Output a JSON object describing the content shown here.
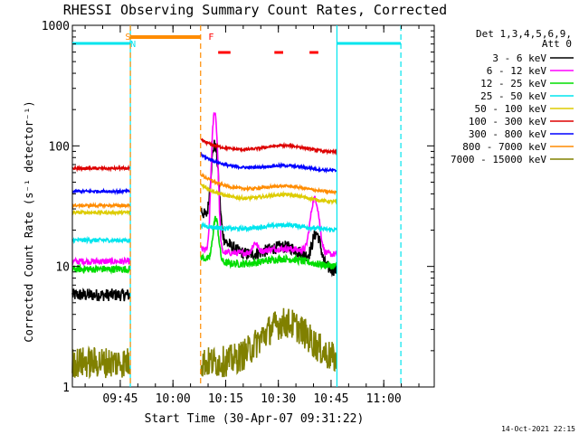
{
  "chart_data": {
    "type": "line",
    "title": "RHESSI Observing Summary Count Rates, Corrected",
    "xlabel": "Start Time (30-Apr-07 09:31:22)",
    "ylabel": "Corrected Count Rate (s⁻¹ detector⁻¹)",
    "y_scale": "log",
    "ylim": [
      1,
      1000
    ],
    "xlim_minutes": [
      0,
      103
    ],
    "y_ticks": [
      {
        "value": 1,
        "label": "1"
      },
      {
        "value": 10,
        "label": "10"
      },
      {
        "value": 100,
        "label": "100"
      },
      {
        "value": 1000,
        "label": "1000"
      }
    ],
    "x_ticks": [
      {
        "value": 13.63,
        "label": "09:45"
      },
      {
        "value": 28.63,
        "label": "10:00"
      },
      {
        "value": 43.63,
        "label": "10:15"
      },
      {
        "value": 58.63,
        "label": "10:30"
      },
      {
        "value": 73.63,
        "label": "10:45"
      },
      {
        "value": 88.63,
        "label": "11:00"
      }
    ],
    "legend_header": [
      "Det 1,3,4,5,6,9,",
      "Att 0"
    ],
    "gaps": [
      [
        16.5,
        36.5
      ],
      [
        75.3,
        103
      ]
    ],
    "night_segments": [
      [
        0,
        16.5
      ],
      [
        75.3,
        93.5
      ]
    ],
    "saa_segment": [
      16.5,
      36.5
    ],
    "flare_segments": [
      [
        41.5,
        45.0
      ],
      [
        57.5,
        60.0
      ],
      [
        67.5,
        70.0
      ]
    ],
    "region_markers": [
      {
        "label": "S",
        "x": 15.8,
        "color": "#ff8c00"
      },
      {
        "label": "N",
        "x": 17.3,
        "color": "#00e5ee"
      },
      {
        "label": "F",
        "x": 39.5,
        "color": "#ff0000"
      }
    ],
    "series": [
      {
        "name": "3 - 6 keV",
        "color": "#000000",
        "pre": 5.8,
        "post_start": 30,
        "mid": 9,
        "bump": 14,
        "end": 5.8,
        "peaks": [
          [
            40.5,
            90,
            1.2
          ],
          [
            69.5,
            17,
            1.5
          ]
        ],
        "noise": 0.12
      },
      {
        "name": "6 - 12 keV",
        "color": "#ff00ff",
        "pre": 11.0,
        "post_start": 14,
        "mid": 12.5,
        "bump": 14,
        "end": 11.5,
        "peaks": [
          [
            40.5,
            190,
            0.9
          ],
          [
            69.0,
            36,
            1.5
          ],
          [
            52.0,
            15,
            1.0
          ]
        ],
        "noise": 0.06
      },
      {
        "name": "12 - 25 keV",
        "color": "#00dd00",
        "pre": 9.5,
        "post_start": 12,
        "mid": 10.0,
        "bump": 11.5,
        "end": 9.8,
        "peaks": [
          [
            40.8,
            24,
            1.0
          ]
        ],
        "noise": 0.07
      },
      {
        "name": "25 - 50 keV",
        "color": "#00e5ee",
        "pre": 16.5,
        "post_start": 22,
        "mid": 20.0,
        "bump": 22,
        "end": 16.0,
        "peaks": [],
        "noise": 0.04
      },
      {
        "name": "50 - 100 keV",
        "color": "#ddcc00",
        "pre": 28.0,
        "post_start": 48,
        "mid": 34.0,
        "bump": 39,
        "end": 29.0,
        "peaks": [],
        "noise": 0.03
      },
      {
        "name": "100 - 300 keV",
        "color": "#dd0000",
        "pre": 65.0,
        "post_start": 112,
        "mid": 88.0,
        "bump": 100,
        "end": 66.0,
        "peaks": [],
        "noise": 0.025
      },
      {
        "name": "300 - 800 keV",
        "color": "#0000ff",
        "pre": 42.0,
        "post_start": 85,
        "mid": 62.0,
        "bump": 68,
        "end": 45.0,
        "peaks": [],
        "noise": 0.025
      },
      {
        "name": "800 - 7000 keV",
        "color": "#ff8c00",
        "pre": 32.0,
        "post_start": 58,
        "mid": 41.0,
        "bump": 46,
        "end": 31.0,
        "peaks": [],
        "noise": 0.025
      },
      {
        "name": "7000 - 15000 keV",
        "color": "#808000",
        "pre": 1.6,
        "post_start": 1.6,
        "mid": 1.6,
        "bump": 3.4,
        "end": 1.6,
        "peaks": [],
        "noise": 0.3
      }
    ]
  },
  "footer": {
    "timestamp": "14-Oct-2021 22:15"
  }
}
